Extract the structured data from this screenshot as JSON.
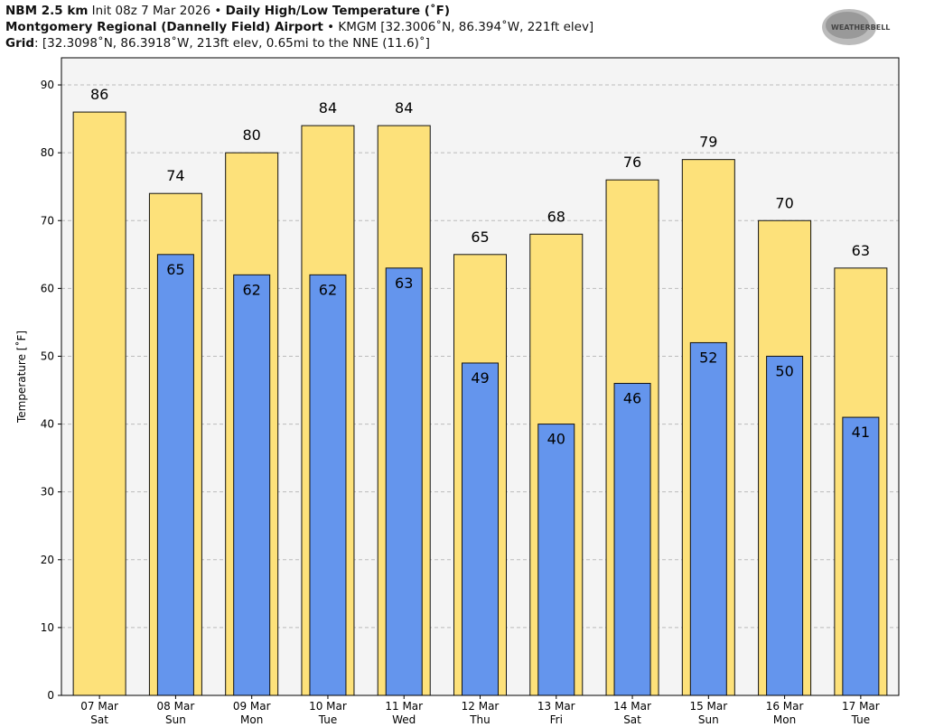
{
  "header": {
    "line1_bold1": "NBM 2.5 km",
    "line1_text": " Init 08z 7 Mar 2026 • ",
    "line1_bold2": "Daily High/Low Temperature (˚F)",
    "line2_bold": "Montgomery Regional (Dannelly Field) Airport",
    "line2_text": " • KMGM [32.3006˚N, 86.394˚W, 221ft elev]",
    "line3_bold": "Grid",
    "line3_text": ": [32.3098˚N, 86.3918˚W, 213ft elev, 0.65mi to the NNE (11.6)˚]"
  },
  "logo": {
    "text": "WEATHERBELL"
  },
  "chart_data": {
    "type": "bar",
    "title": "Daily High/Low Temperature (˚F)",
    "ylabel": "Temperature [˚F]",
    "ylim": [
      0,
      94
    ],
    "yticks": [
      0,
      10,
      20,
      30,
      40,
      50,
      60,
      70,
      80,
      90
    ],
    "grid": true,
    "categories": [
      [
        "07 Mar",
        "Sat"
      ],
      [
        "08 Mar",
        "Sun"
      ],
      [
        "09 Mar",
        "Mon"
      ],
      [
        "10 Mar",
        "Tue"
      ],
      [
        "11 Mar",
        "Wed"
      ],
      [
        "12 Mar",
        "Thu"
      ],
      [
        "13 Mar",
        "Fri"
      ],
      [
        "14 Mar",
        "Sat"
      ],
      [
        "15 Mar",
        "Sun"
      ],
      [
        "16 Mar",
        "Mon"
      ],
      [
        "17 Mar",
        "Tue"
      ]
    ],
    "series": [
      {
        "role": "high",
        "color": "#fde17a",
        "values": [
          86,
          74,
          80,
          84,
          84,
          65,
          68,
          76,
          79,
          70,
          63
        ]
      },
      {
        "role": "low",
        "color": "#6495ed",
        "values": [
          null,
          65,
          62,
          62,
          63,
          49,
          40,
          46,
          52,
          50,
          41
        ]
      }
    ],
    "plot_background": "#f4f4f4"
  }
}
